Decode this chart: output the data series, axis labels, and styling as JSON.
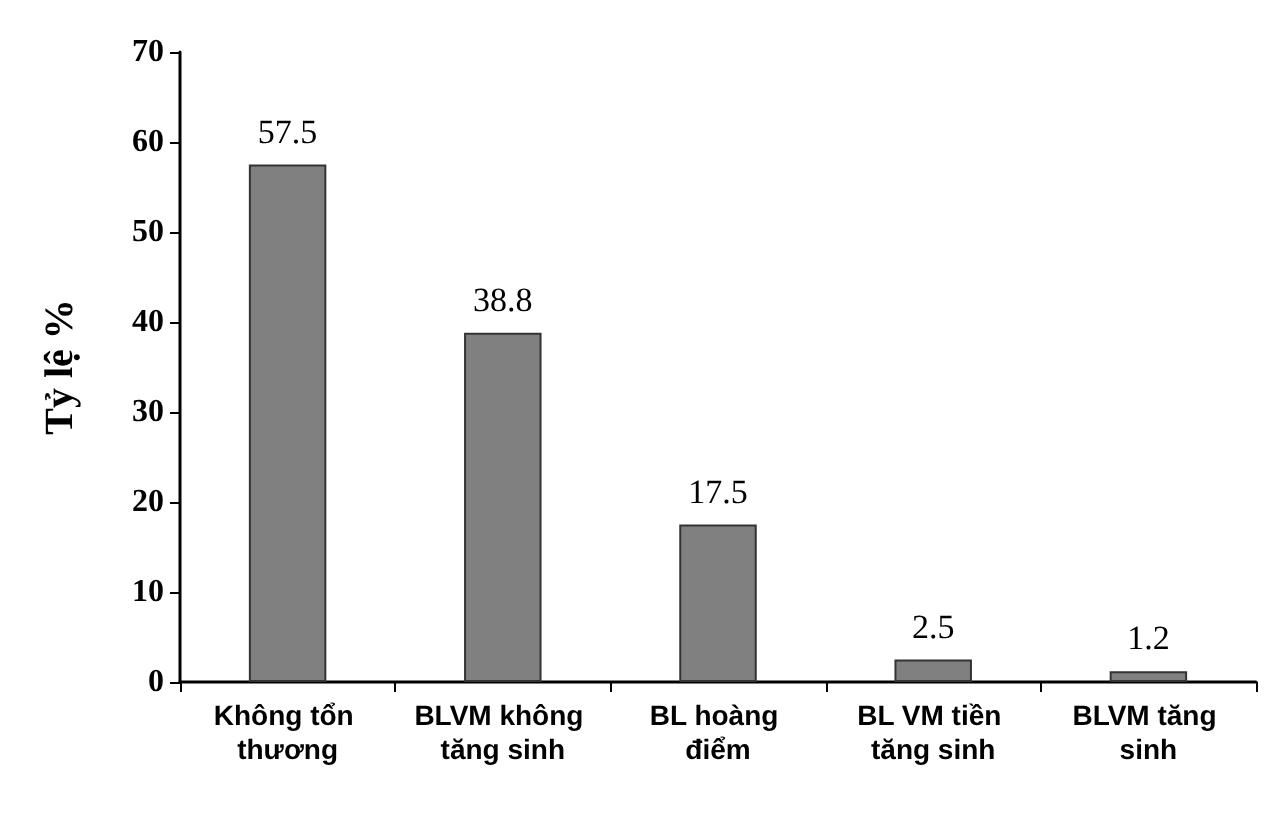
{
  "chart_data": {
    "type": "bar",
    "ylabel": "Tỷ lệ %",
    "categories": [
      "Không tổn thương",
      "BLVM không tăng sinh",
      "BL hoàng điểm",
      "BL VM tiền tăng sinh",
      "BLVM tăng sinh"
    ],
    "values": [
      57.5,
      38.8,
      17.5,
      2.5,
      1.2
    ],
    "color": "#808080",
    "ylim": [
      0,
      70
    ],
    "yticks": [
      0,
      10,
      20,
      30,
      40,
      50,
      60,
      70
    ],
    "grid": false,
    "data_labels": true
  }
}
